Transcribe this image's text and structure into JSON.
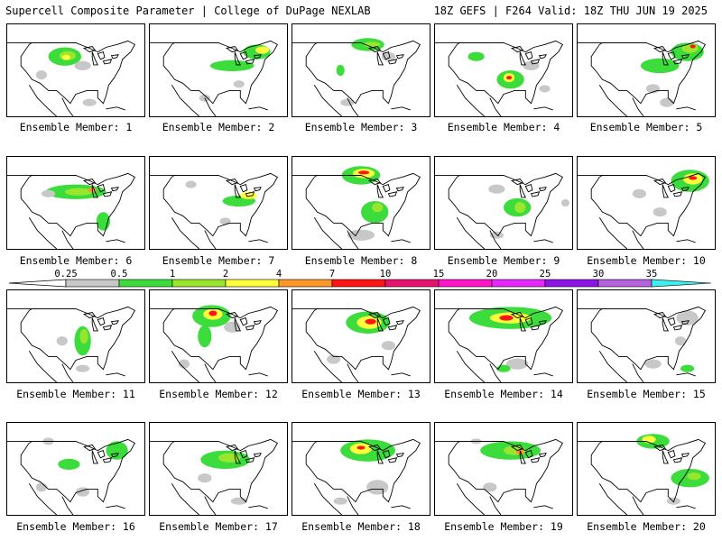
{
  "header": {
    "title": "Supercell Composite Parameter | College of DuPage NEXLAB",
    "run_info": "18Z GEFS | F264 Valid: 18Z THU JUN 19 2025"
  },
  "colorbar": {
    "labels": [
      "0.25",
      "0.5",
      "1",
      "2",
      "4",
      "7",
      "10",
      "15",
      "20",
      "25",
      "30",
      "35"
    ],
    "colors": [
      "#c8c8c8",
      "#3cdc3c",
      "#9ae62e",
      "#ffff3c",
      "#ff9628",
      "#ff1414",
      "#e6146e",
      "#ff14c8",
      "#e628ff",
      "#8c14e6",
      "#b464dc",
      "#3cf0f0"
    ]
  },
  "panels": [
    {
      "caption": "Ensemble Member: 1"
    },
    {
      "caption": "Ensemble Member: 2"
    },
    {
      "caption": "Ensemble Member: 3"
    },
    {
      "caption": "Ensemble Member: 4"
    },
    {
      "caption": "Ensemble Member: 5"
    },
    {
      "caption": "Ensemble Member: 6"
    },
    {
      "caption": "Ensemble Member: 7"
    },
    {
      "caption": "Ensemble Member: 8"
    },
    {
      "caption": "Ensemble Member: 9"
    },
    {
      "caption": "Ensemble Member: 10"
    },
    {
      "caption": "Ensemble Member: 11"
    },
    {
      "caption": "Ensemble Member: 12"
    },
    {
      "caption": "Ensemble Member: 13"
    },
    {
      "caption": "Ensemble Member: 14"
    },
    {
      "caption": "Ensemble Member: 15"
    },
    {
      "caption": "Ensemble Member: 16"
    },
    {
      "caption": "Ensemble Member: 17"
    },
    {
      "caption": "Ensemble Member: 18"
    },
    {
      "caption": "Ensemble Member: 19"
    },
    {
      "caption": "Ensemble Member: 20"
    }
  ]
}
